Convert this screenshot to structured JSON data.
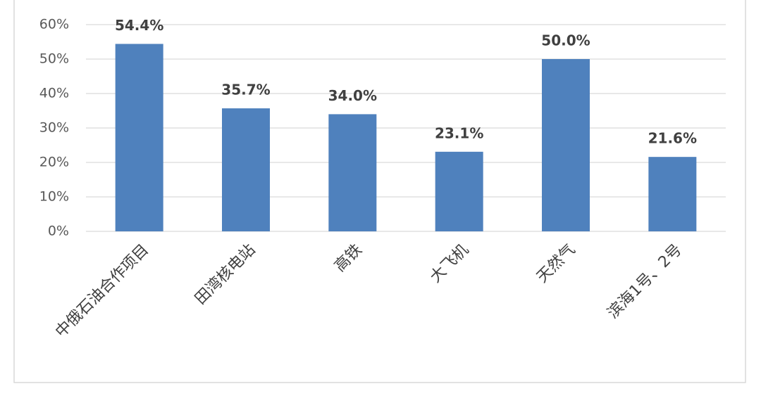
{
  "chart_data": {
    "type": "bar",
    "categories": [
      "中俄石油合作项目",
      "田湾核电站",
      "高铁",
      "大飞机",
      "天然气",
      "滨海1号、2号"
    ],
    "values": [
      54.4,
      35.7,
      34.0,
      23.1,
      50.0,
      21.6
    ],
    "value_labels": [
      "54.4%",
      "35.7%",
      "34.0%",
      "23.1%",
      "50.0%",
      "21.6%"
    ],
    "color": "#4f81bd",
    "ylim": [
      0,
      60
    ],
    "yticks": [
      {
        "value": 0,
        "label": "0%"
      },
      {
        "value": 10,
        "label": "10%"
      },
      {
        "value": 20,
        "label": "20%"
      },
      {
        "value": 30,
        "label": "30%"
      },
      {
        "value": 40,
        "label": "40%"
      },
      {
        "value": 50,
        "label": "50%"
      },
      {
        "value": 60,
        "label": "60%"
      }
    ],
    "grid": true
  }
}
